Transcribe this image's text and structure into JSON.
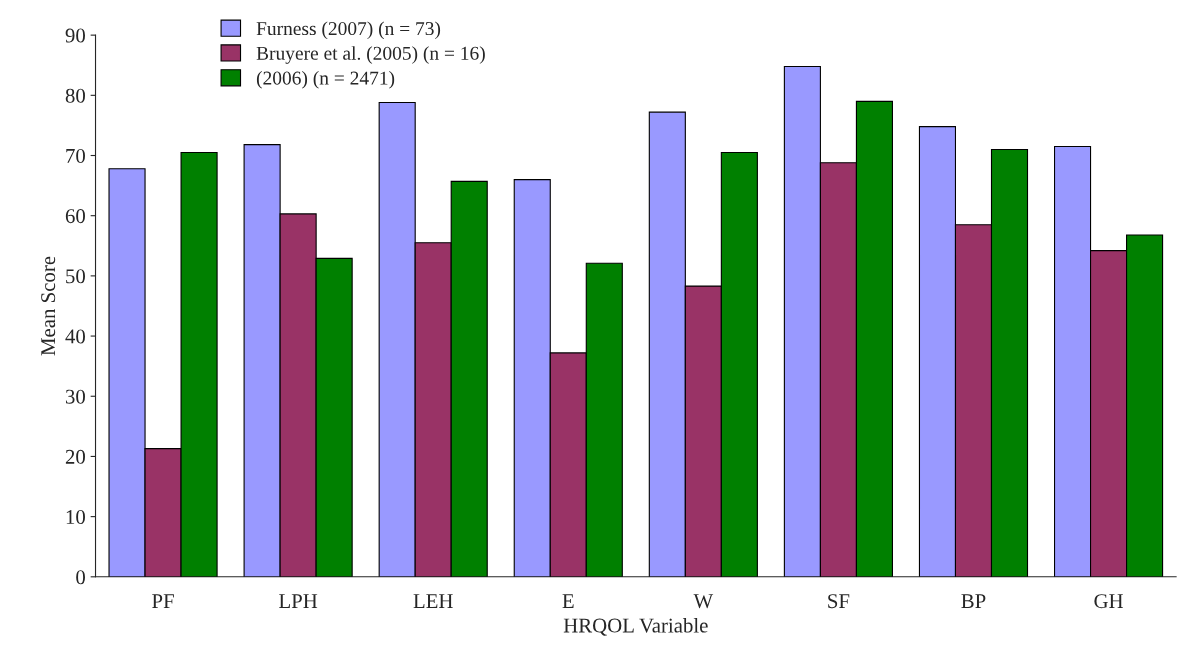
{
  "chart_data": {
    "type": "bar",
    "xlabel": "HRQOL Variable",
    "ylabel": "Mean Score",
    "categories": [
      "PF",
      "LPH",
      "LEH",
      "E",
      "W",
      "SF",
      "BP",
      "GH"
    ],
    "series": [
      {
        "name": "Furness (2007) (n = 73)",
        "color": "#9999ff",
        "values": [
          67.8,
          71.8,
          78.8,
          66.0,
          77.2,
          84.8,
          74.8,
          71.5
        ]
      },
      {
        "name": "Bruyere et al. (2005) (n = 16)",
        "color": "#993366",
        "values": [
          21.3,
          60.3,
          55.5,
          37.2,
          48.3,
          68.8,
          58.5,
          54.2
        ]
      },
      {
        "name": "(2006) (n = 2471)",
        "color": "#008000",
        "values": [
          70.5,
          52.9,
          65.7,
          52.1,
          70.5,
          79.0,
          71.0,
          56.8
        ]
      }
    ],
    "ylim": [
      0,
      90
    ],
    "yticks": [
      0,
      10,
      20,
      30,
      40,
      50,
      60,
      70,
      80,
      90
    ],
    "grid": false,
    "legend": "top"
  }
}
